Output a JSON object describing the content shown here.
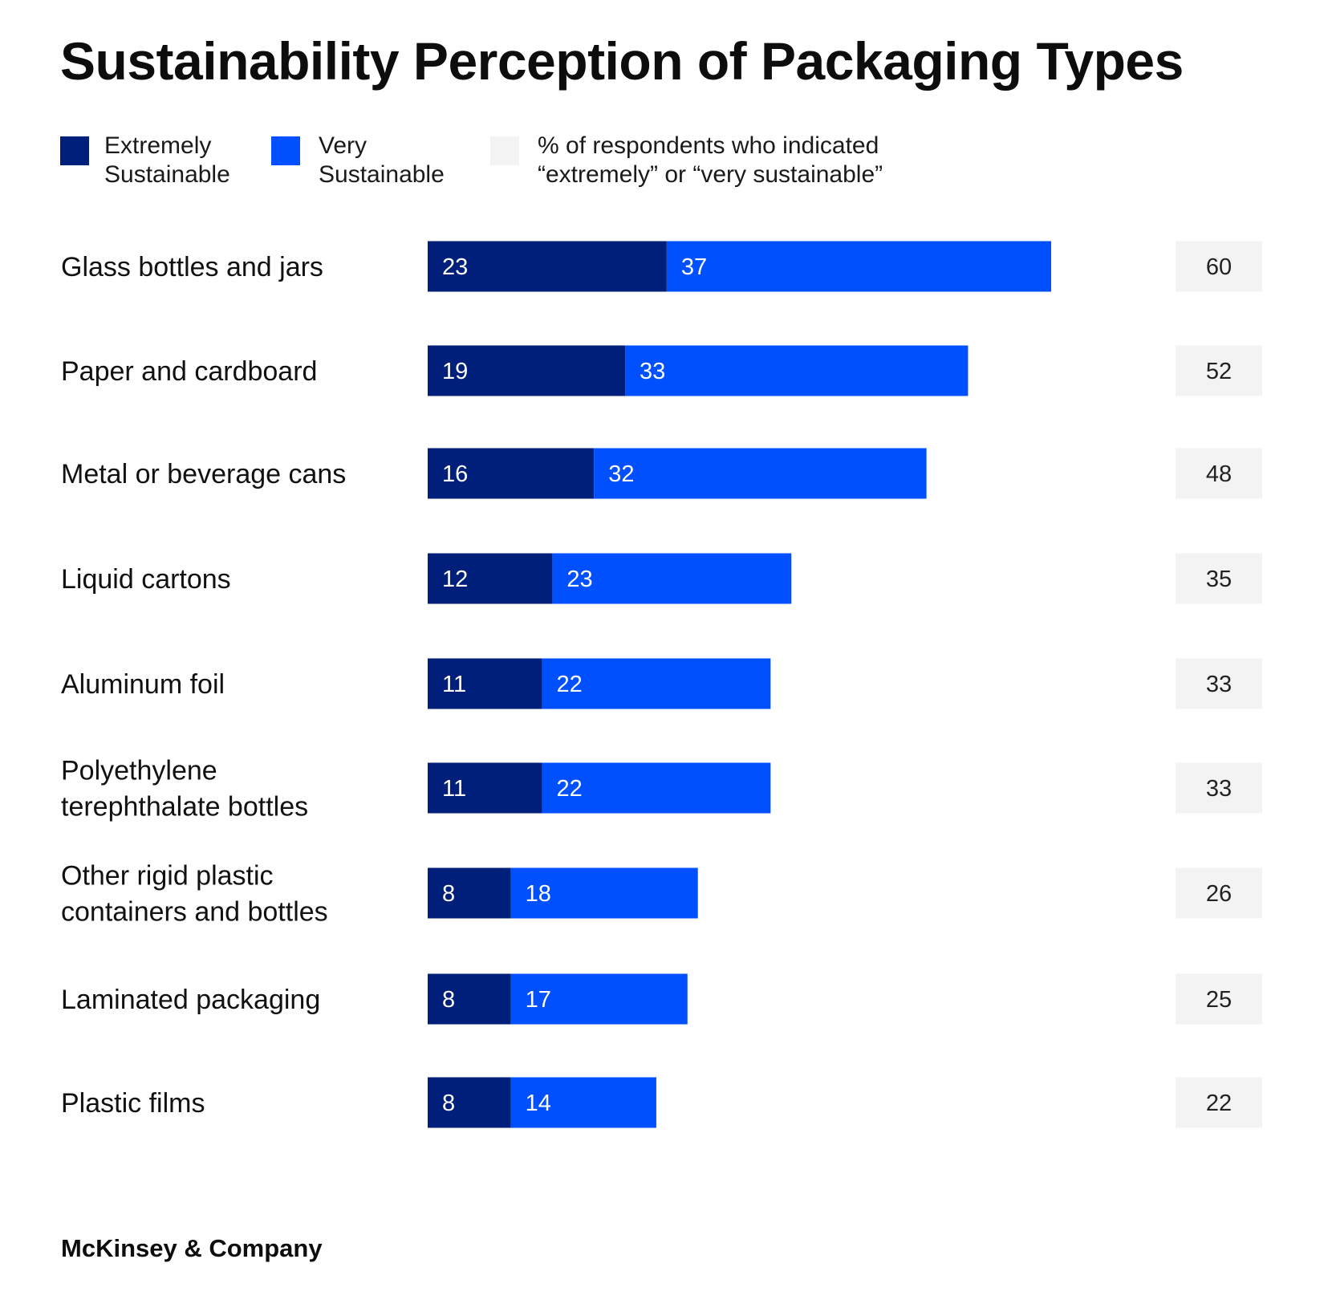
{
  "title": "Sustainability Perception of Packaging Types",
  "legend": {
    "extremely": {
      "line1": "Extremely",
      "line2": "Sustainable",
      "color": "#001f7a"
    },
    "very": {
      "line1": "Very",
      "line2": "Sustainable",
      "color": "#0050ff"
    },
    "total": {
      "line1": "% of respondents who indicated",
      "line2": "“extremely” or “very sustainable”",
      "color": "#f3f3f3"
    }
  },
  "chart_data": {
    "type": "bar",
    "orientation": "horizontal",
    "stacked": true,
    "categories": [
      [
        "Glass bottles and jars"
      ],
      [
        "Paper and cardboard"
      ],
      [
        "Metal or beverage cans"
      ],
      [
        "Liquid cartons"
      ],
      [
        "Aluminum foil"
      ],
      [
        "Polyethylene",
        "terephthalate bottles"
      ],
      [
        "Other rigid plastic",
        "containers and bottles"
      ],
      [
        "Laminated packaging"
      ],
      [
        "Plastic films"
      ]
    ],
    "series": [
      {
        "name": "Extremely Sustainable",
        "color": "#001f7a",
        "values": [
          23,
          19,
          16,
          12,
          11,
          11,
          8,
          8,
          8
        ]
      },
      {
        "name": "Very Sustainable",
        "color": "#0050ff",
        "values": [
          37,
          33,
          32,
          23,
          22,
          22,
          18,
          17,
          14
        ]
      }
    ],
    "totals": [
      60,
      52,
      48,
      35,
      33,
      33,
      26,
      25,
      22
    ],
    "xlim": [
      0,
      60
    ],
    "grid": false,
    "legend_position": "top-left"
  },
  "source": "McKinsey & Company"
}
